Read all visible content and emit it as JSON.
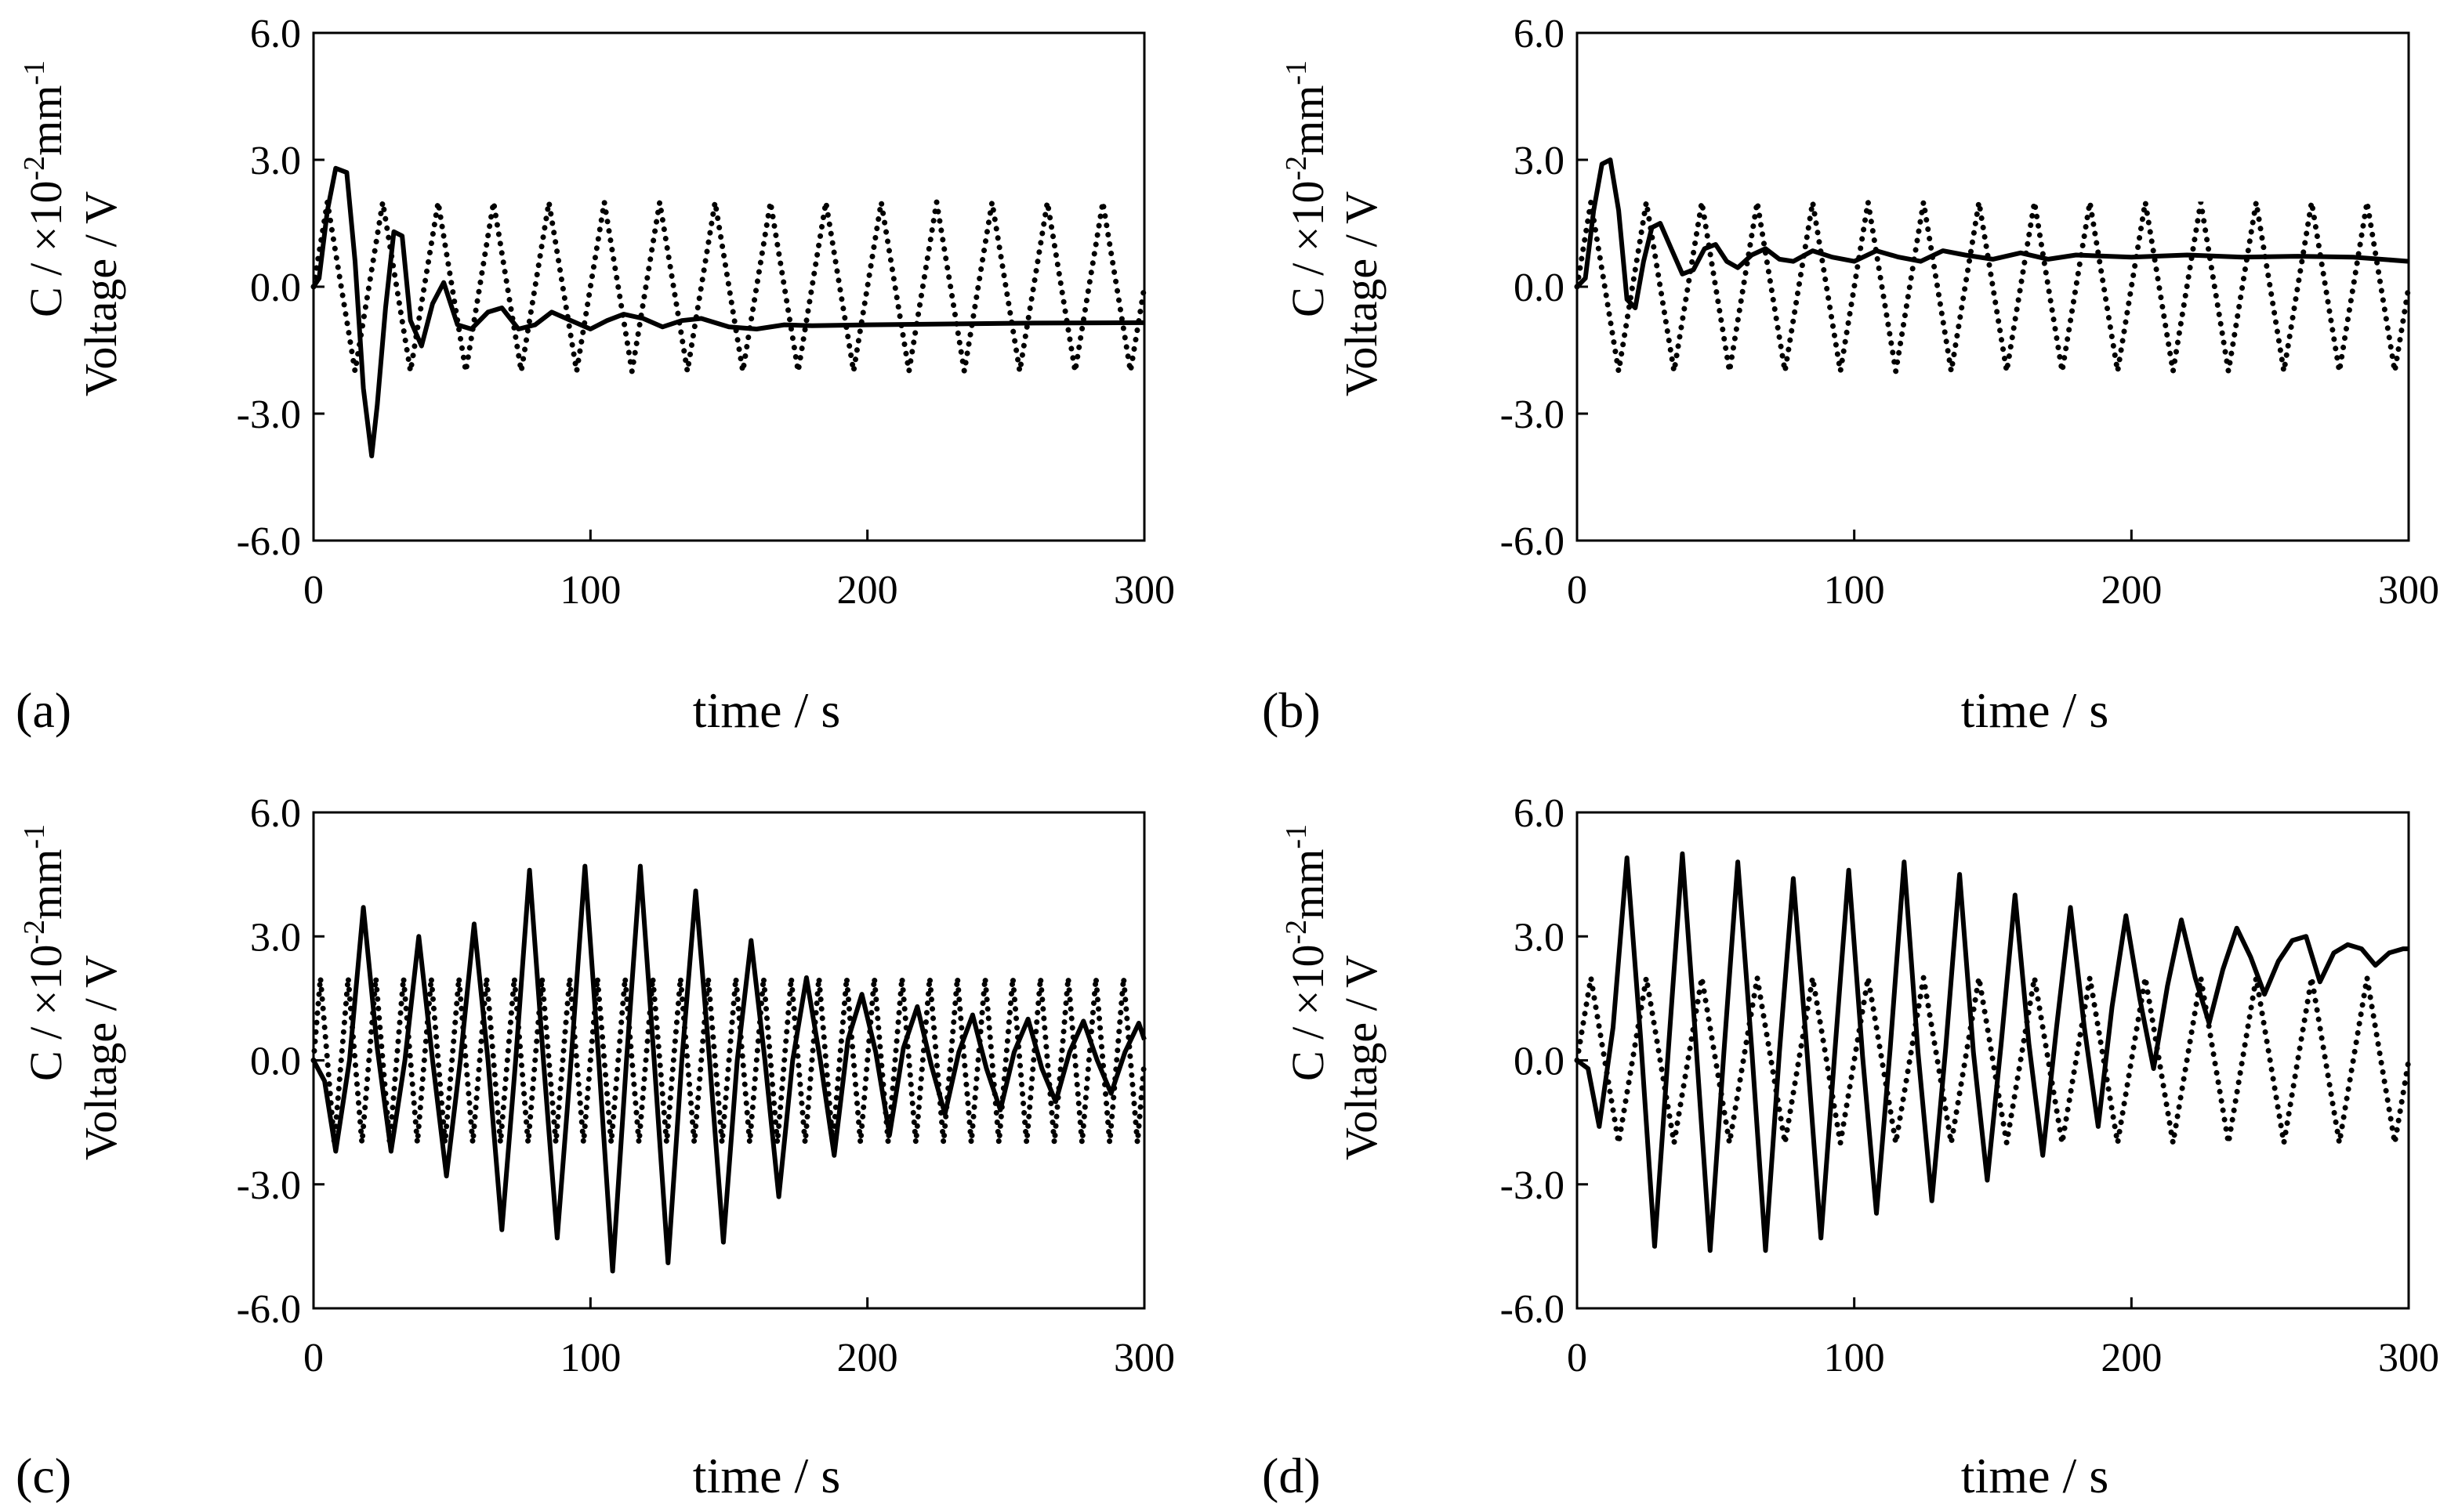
{
  "figure": {
    "ylabel_line1": "C / ×10",
    "ylabel_sup1": "-2",
    "ylabel_unit": "mm",
    "ylabel_sup2": "-1",
    "ylabel_line2": "Voltage / V"
  },
  "chart_data": [
    {
      "type": "line",
      "panel": "(a)",
      "xlabel": "time / s",
      "xlim": [
        0,
        300
      ],
      "ylim": [
        -6,
        6
      ],
      "xticks": [
        "0",
        "100",
        "200",
        "300"
      ],
      "yticks": [
        "6.0",
        "3.0",
        "0.0",
        "-3.0",
        "-6.0"
      ],
      "series": [
        {
          "name": "Voltage (dotted)",
          "style": "dotted",
          "wave": {
            "amplitude": 2.0,
            "period": 20,
            "phase": 0,
            "shape": "triangle"
          }
        },
        {
          "name": "C (solid)",
          "style": "solid",
          "x": [
            0,
            2,
            5,
            8,
            12,
            15,
            18,
            21,
            23,
            26,
            29,
            32,
            35,
            39,
            43,
            47,
            52,
            57,
            63,
            68,
            74,
            80,
            86,
            93,
            100,
            106,
            112,
            119,
            126,
            133,
            140,
            150,
            160,
            170,
            180,
            200,
            230,
            260,
            300
          ],
          "y": [
            0,
            0.2,
            1.8,
            2.8,
            2.7,
            0.6,
            -2.4,
            -4.0,
            -2.8,
            -0.5,
            1.3,
            1.2,
            -0.8,
            -1.4,
            -0.4,
            0.1,
            -0.9,
            -1.0,
            -0.6,
            -0.5,
            -1.0,
            -0.9,
            -0.6,
            -0.8,
            -1.0,
            -0.8,
            -0.65,
            -0.75,
            -0.95,
            -0.8,
            -0.75,
            -0.95,
            -1.0,
            -0.9,
            -0.92,
            -0.9,
            -0.88,
            -0.86,
            -0.85
          ]
        }
      ]
    },
    {
      "type": "line",
      "panel": "(b)",
      "xlabel": "time / s",
      "xlim": [
        0,
        300
      ],
      "ylim": [
        -6,
        6
      ],
      "xticks": [
        "0",
        "100",
        "200",
        "300"
      ],
      "yticks": [
        "6.0",
        "3.0",
        "0.0",
        "-3.0",
        "-6.0"
      ],
      "series": [
        {
          "name": "Voltage (dotted)",
          "style": "dotted",
          "wave": {
            "amplitude": 2.0,
            "period": 20,
            "phase": 0,
            "shape": "triangle"
          }
        },
        {
          "name": "C (solid)",
          "style": "solid",
          "x": [
            0,
            3,
            6,
            9,
            12,
            15,
            18,
            21,
            24,
            27,
            30,
            34,
            38,
            42,
            46,
            50,
            54,
            58,
            63,
            68,
            73,
            78,
            85,
            92,
            100,
            108,
            116,
            124,
            132,
            140,
            150,
            160,
            170,
            180,
            200,
            220,
            240,
            260,
            280,
            300
          ],
          "y": [
            0,
            0.2,
            1.8,
            2.9,
            3.0,
            1.8,
            -0.3,
            -0.5,
            0.6,
            1.4,
            1.5,
            0.9,
            0.3,
            0.4,
            0.9,
            1.0,
            0.6,
            0.45,
            0.75,
            0.9,
            0.65,
            0.6,
            0.85,
            0.7,
            0.6,
            0.85,
            0.7,
            0.6,
            0.85,
            0.75,
            0.65,
            0.8,
            0.65,
            0.75,
            0.7,
            0.75,
            0.7,
            0.72,
            0.7,
            0.6
          ]
        }
      ]
    },
    {
      "type": "line",
      "panel": "(c)",
      "xlabel": "time / s",
      "xlim": [
        0,
        300
      ],
      "ylim": [
        -6,
        6
      ],
      "xticks": [
        "0",
        "100",
        "200",
        "300"
      ],
      "yticks": [
        "6.0",
        "3.0",
        "0.0",
        "-3.0",
        "-6.0"
      ],
      "series": [
        {
          "name": "Voltage (dotted)",
          "style": "dotted",
          "wave": {
            "amplitude": 2.0,
            "period": 10,
            "phase": 0,
            "shape": "triangle"
          }
        },
        {
          "name": "C (solid)",
          "style": "solid",
          "x": [
            0,
            4,
            8,
            13,
            18,
            23,
            28,
            33,
            38,
            43,
            48,
            53,
            58,
            63,
            68,
            73,
            78,
            83,
            88,
            93,
            98,
            103,
            108,
            113,
            118,
            123,
            128,
            133,
            138,
            143,
            148,
            153,
            158,
            163,
            168,
            173,
            178,
            183,
            188,
            193,
            198,
            203,
            208,
            213,
            218,
            223,
            228,
            233,
            238,
            243,
            248,
            253,
            258,
            263,
            268,
            273,
            278,
            283,
            288,
            293,
            298,
            300
          ],
          "y": [
            0,
            -0.5,
            -2.2,
            0.0,
            3.7,
            0.3,
            -2.2,
            0.0,
            3.0,
            0.0,
            -2.8,
            0.0,
            3.3,
            0.0,
            -4.1,
            0.0,
            4.6,
            0.0,
            -4.3,
            0.0,
            4.7,
            0.0,
            -5.1,
            0.0,
            4.7,
            0.0,
            -4.9,
            0.0,
            4.1,
            0.0,
            -4.4,
            0.0,
            2.9,
            0.0,
            -3.3,
            0.0,
            2.0,
            0.0,
            -2.3,
            0.5,
            1.6,
            0.2,
            -1.8,
            0.3,
            1.3,
            -0.1,
            -1.3,
            0.2,
            1.1,
            -0.2,
            -1.2,
            0.2,
            1.0,
            -0.2,
            -1.0,
            0.2,
            0.95,
            0.0,
            -0.8,
            0.2,
            0.9,
            0.5
          ]
        }
      ]
    },
    {
      "type": "line",
      "panel": "(d)",
      "xlabel": "time / s",
      "xlim": [
        0,
        300
      ],
      "ylim": [
        -6,
        6
      ],
      "xticks": [
        "0",
        "100",
        "200",
        "300"
      ],
      "yticks": [
        "6.0",
        "3.0",
        "0.0",
        "-3.0",
        "-6.0"
      ],
      "series": [
        {
          "name": "Voltage (dotted)",
          "style": "dotted",
          "wave": {
            "amplitude": 2.0,
            "period": 20,
            "phase": 0,
            "shape": "triangle"
          }
        },
        {
          "name": "C (solid)",
          "style": "solid",
          "x": [
            0,
            4,
            8,
            13,
            18,
            23,
            28,
            33,
            38,
            43,
            48,
            53,
            58,
            63,
            68,
            73,
            78,
            83,
            88,
            93,
            98,
            103,
            108,
            113,
            118,
            123,
            128,
            133,
            138,
            143,
            148,
            153,
            158,
            163,
            168,
            173,
            178,
            183,
            188,
            193,
            198,
            203,
            208,
            213,
            218,
            223,
            228,
            233,
            238,
            243,
            248,
            253,
            258,
            263,
            268,
            273,
            278,
            283,
            288,
            293,
            298,
            300
          ],
          "y": [
            0,
            -0.2,
            -1.6,
            0.8,
            4.9,
            0.5,
            -4.5,
            0.3,
            5.0,
            0.3,
            -4.6,
            0.2,
            4.8,
            0.3,
            -4.6,
            0.2,
            4.4,
            0.2,
            -4.3,
            0.2,
            4.6,
            0.1,
            -3.7,
            0.3,
            4.8,
            0.2,
            -3.4,
            0.3,
            4.5,
            0.2,
            -2.9,
            0.4,
            4.0,
            0.4,
            -2.3,
            0.8,
            3.7,
            0.8,
            -1.6,
            1.3,
            3.5,
            1.5,
            -0.2,
            1.8,
            3.4,
            2.0,
            0.9,
            2.2,
            3.2,
            2.5,
            1.6,
            2.4,
            2.9,
            3.0,
            1.9,
            2.6,
            2.8,
            2.7,
            2.3,
            2.6,
            2.7,
            2.7
          ]
        }
      ]
    }
  ]
}
